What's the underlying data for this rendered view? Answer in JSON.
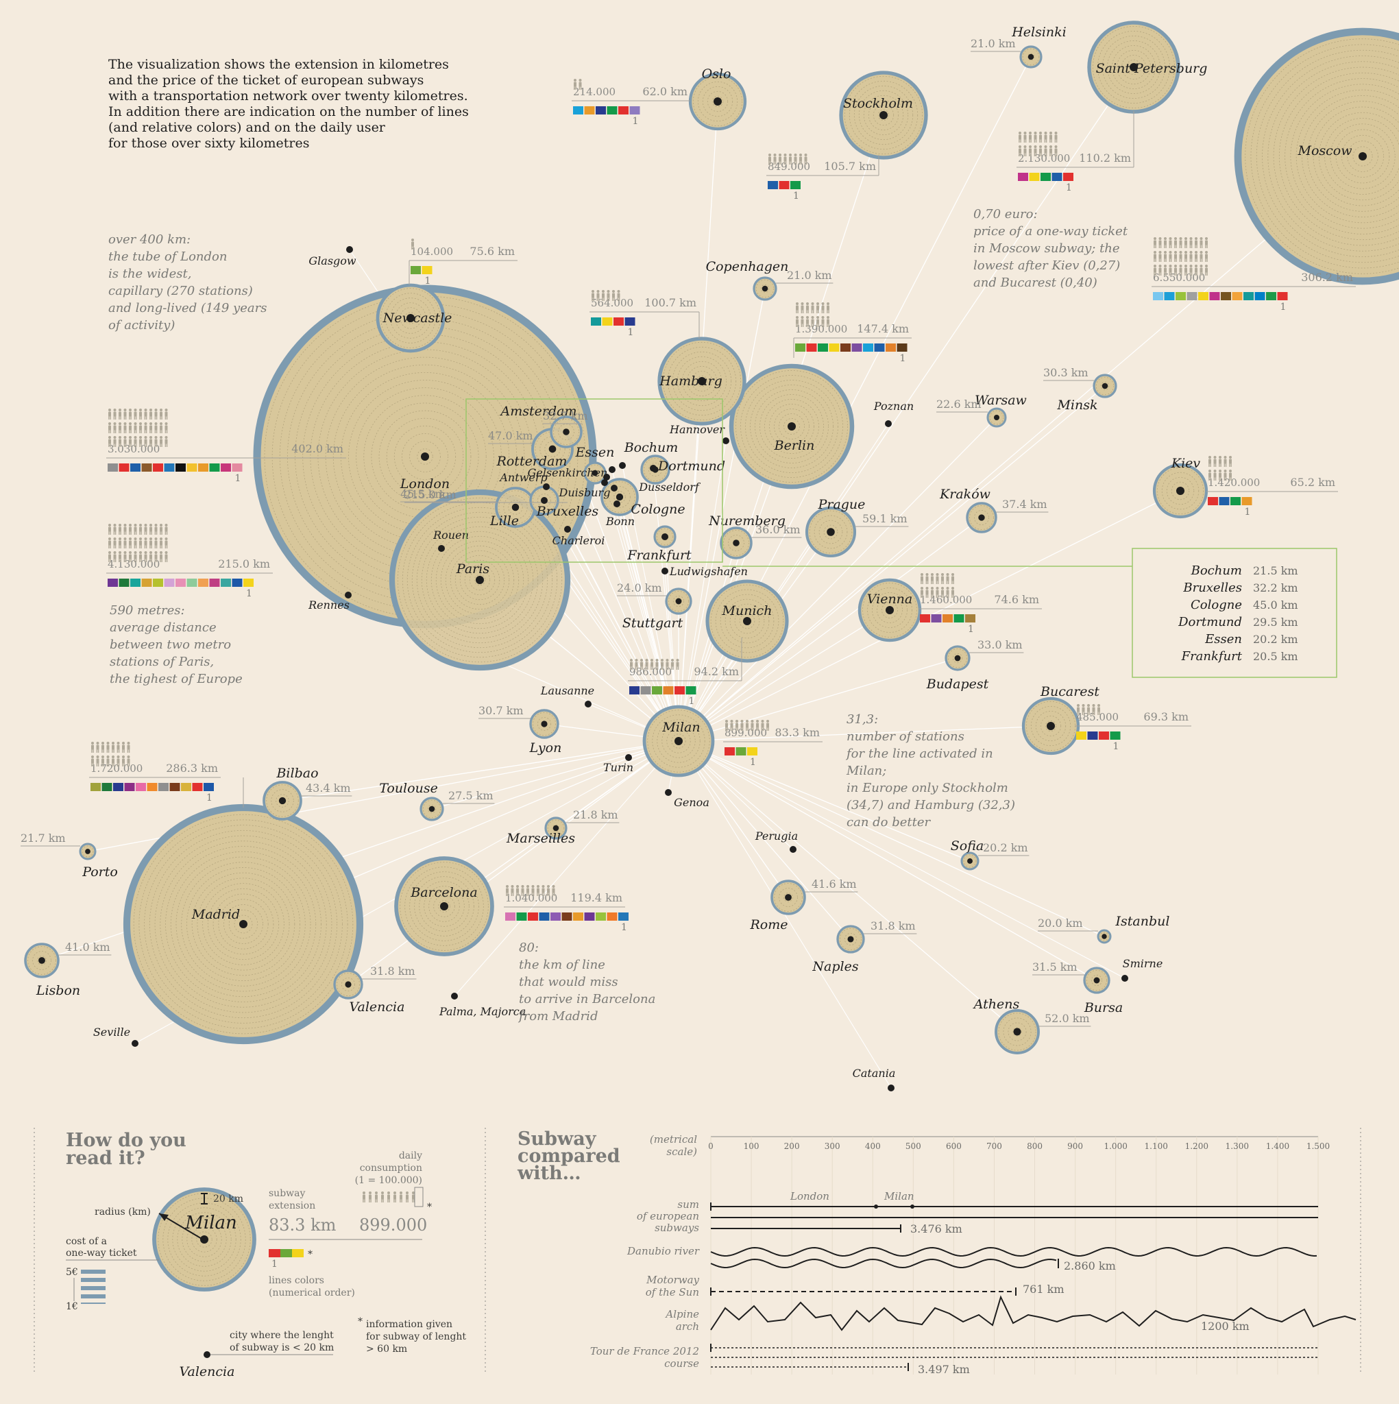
{
  "intro": {
    "lines": [
      "The visualization shows the extension in kilometres",
      "and the price of the ticket of european subways",
      "with a transportation network over twenty kilometres.",
      "In addition there are indication on the number of lines",
      "(and relative colors) and on the daily user",
      "for those over sixty kilometres"
    ]
  },
  "annotations": {
    "london": [
      "over 400 km:",
      "the tube of London",
      "is the widest,",
      "capillary (270 stations)",
      "and long-lived (149 years",
      "of activity)"
    ],
    "paris": [
      "590 metres:",
      "average distance",
      "between two metro",
      "stations of Paris,",
      "the tighest of Europe"
    ],
    "moscow": [
      "0,70 euro:",
      "price of a one-way ticket",
      "in Moscow subway; the",
      "lowest after Kiev (0,27)",
      "and Bucarest (0,40)"
    ],
    "milan": [
      "31,3:",
      "number of stations",
      "for the line activated in",
      "Milan;",
      "in Europe only Stockholm",
      "(34,7) and Hamburg (32,3)",
      "can do better"
    ],
    "barcelona": [
      "80:",
      "the km of line",
      "that would miss",
      "to arrive in Barcelona",
      "from Madrid"
    ]
  },
  "colors": {
    "bg": "#f4ebde",
    "circle_fill": "#d8c79b",
    "circle_ring": "#7d9bb0",
    "link": "#ffffff",
    "highlight_box": "#9bc76a",
    "dot": "#1e1e1e"
  },
  "cities": [
    {
      "name": "London",
      "km": "402.0 km",
      "pop": "3.030.000",
      "lines": [
        "#8f8f8f",
        "#e2312f",
        "#1f5fa8",
        "#8b5a2b",
        "#e2312f",
        "#2377b8",
        "#111111",
        "#f2c12e",
        "#e89a2a",
        "#149a4a",
        "#c7367a",
        "#e48aa0"
      ]
    },
    {
      "name": "Paris",
      "km": "215.0 km",
      "pop": "4.130.000",
      "lines": [
        "#6e3794",
        "#1f7a3b",
        "#19a59b",
        "#d6a233",
        "#b5c12e",
        "#d3a3d6",
        "#e790b5",
        "#8ecb9b",
        "#f0a052",
        "#bf3f83",
        "#3aa6a0",
        "#1d58a8",
        "#f3d31b"
      ]
    },
    {
      "name": "Madrid",
      "km": "286.3 km",
      "pop": "1.720.000",
      "lines": [
        "#a1a23b",
        "#1f7a3b",
        "#283b8f",
        "#8d2e86",
        "#e86aa6",
        "#f08a2b",
        "#8f8f8f",
        "#7a3c1c",
        "#d8b23a",
        "#e2312f",
        "#1d58a8"
      ]
    },
    {
      "name": "Moscow",
      "km": "306.2 km",
      "pop": "6.550.000",
      "lines": [
        "#79c7ef",
        "#1d9fd7",
        "#99c23c",
        "#a0a0a0",
        "#f3d31b",
        "#c0338a",
        "#76541f",
        "#f2a33a",
        "#149a9a",
        "#0080c8",
        "#1f9a4a",
        "#e2312f"
      ]
    },
    {
      "name": "Barcelona",
      "km": "119.4 km",
      "pop": "1.040.000",
      "lines": [
        "#d773b2",
        "#149a4a",
        "#e2312f",
        "#1f5fa8",
        "#8e5bb3",
        "#7a3c1c",
        "#e89a2a",
        "#6e3794",
        "#99c23c",
        "#f07a2a",
        "#2377b8"
      ]
    },
    {
      "name": "Berlin",
      "km": "147.4 km",
      "pop": "1.390.000",
      "lines": [
        "#6aa83a",
        "#e2312f",
        "#149a4a",
        "#f3d31b",
        "#7a3c1c",
        "#7d4ea0",
        "#19a1d8",
        "#1f5fa8",
        "#e2812a",
        "#5b3a1a"
      ]
    },
    {
      "name": "Milan",
      "km": "83.3 km",
      "pop": "899.000",
      "lines": [
        "#e2312f",
        "#6aa83a",
        "#f3d31b"
      ]
    },
    {
      "name": "Munich",
      "km": "94.2 km",
      "pop": "986.000",
      "lines": [
        "#283b8f",
        "#8f8f8f",
        "#6aa83a",
        "#e2812a",
        "#e2312f",
        "#149a4a"
      ]
    },
    {
      "name": "Stockholm",
      "km": "105.7 km",
      "pop": "849.000",
      "lines": [
        "#1f5fa8",
        "#e2312f",
        "#149a4a"
      ]
    },
    {
      "name": "Hamburg",
      "km": "100.7 km",
      "pop": "564.000",
      "lines": [
        "#149a9a",
        "#f3d31b",
        "#e2312f",
        "#283b8f"
      ]
    },
    {
      "name": "Saint Petersburg",
      "km": "110.2 km",
      "pop": "2.130.000",
      "lines": [
        "#c0338a",
        "#f3d31b",
        "#149a4a",
        "#1f5fa8",
        "#e2312f"
      ]
    },
    {
      "name": "Vienna",
      "km": "74.6 km",
      "pop": "1.460.000",
      "lines": [
        "#e2312f",
        "#7d4ea0",
        "#e2812a",
        "#149a4a",
        "#a5803a"
      ]
    },
    {
      "name": "Oslo",
      "km": "62.0 km",
      "pop": "214.000",
      "lines": [
        "#19a1d8",
        "#e89a2a",
        "#283b8f",
        "#149a4a",
        "#e2312f",
        "#8e7bc0"
      ]
    },
    {
      "name": "Newcastle",
      "km": "75.6 km",
      "pop": "104.000",
      "lines": [
        "#6aa83a",
        "#f3d31b"
      ]
    },
    {
      "name": "Kiev",
      "km": "65.2 km",
      "pop": "1.420.000",
      "lines": [
        "#e2312f",
        "#1f5fa8",
        "#149a4a",
        "#e89a2a"
      ]
    },
    {
      "name": "Bucarest",
      "km": "69.3 km",
      "pop": "485.000",
      "lines": [
        "#f3d31b",
        "#283b8f",
        "#e2312f",
        "#149a4a"
      ]
    },
    {
      "name": "Lisbon",
      "km": "41.0 km"
    },
    {
      "name": "Porto",
      "km": "21.7 km"
    },
    {
      "name": "Bilbao",
      "km": "43.4 km"
    },
    {
      "name": "Toulouse",
      "km": "27.5 km"
    },
    {
      "name": "Marseilles",
      "km": "21.8 km"
    },
    {
      "name": "Valencia",
      "km": "31.8 km"
    },
    {
      "name": "Lyon",
      "km": "30.7 km"
    },
    {
      "name": "Rotterdam",
      "km": "47.0 km"
    },
    {
      "name": "Amsterdam",
      "km": "32.7 km"
    },
    {
      "name": "Lille",
      "km": "45.5 km"
    },
    {
      "name": "Copenhagen",
      "km": "21.0 km"
    },
    {
      "name": "Helsinki",
      "km": "21.0 km"
    },
    {
      "name": "Stuttgart",
      "km": "24.0 km"
    },
    {
      "name": "Nuremberg",
      "km": "36.0 km"
    },
    {
      "name": "Prague",
      "km": "59.1 km"
    },
    {
      "name": "Budapest",
      "km": "33.0 km"
    },
    {
      "name": "Warsaw",
      "km": "22.6 km"
    },
    {
      "name": "Minsk",
      "km": "30.3 km"
    },
    {
      "name": "Kraków",
      "km": "37.4 km"
    },
    {
      "name": "Sofia",
      "km": "20.2 km"
    },
    {
      "name": "Rome",
      "km": "41.6 km"
    },
    {
      "name": "Naples",
      "km": "31.8 km"
    },
    {
      "name": "Istanbul",
      "km": "20.0 km"
    },
    {
      "name": "Bursa",
      "km": "31.5 km"
    },
    {
      "name": "Athens",
      "km": "52.0 km"
    }
  ],
  "small_cities": [
    "Glasgow",
    "Rennes",
    "Rouen",
    "Charleroi",
    "Ludwigshafen",
    "Lausanne",
    "Turin",
    "Genoa",
    "Hannover",
    "Poznan",
    "Perugia",
    "Seville",
    "Palma, Majorca",
    "Catania",
    "Smirne",
    "Essen",
    "Bochum",
    "Dortmund",
    "Gelsenkirchen",
    "Duisburg",
    "Dusseldorf",
    "Antwerp",
    "Bruxelles",
    "Bonn",
    "Cologne",
    "Frankfurt"
  ],
  "ruhr_box": [
    {
      "city": "Bochum",
      "km": "21.5 km"
    },
    {
      "city": "Bruxelles",
      "km": "32.2 km"
    },
    {
      "city": "Cologne",
      "km": "45.0 km"
    },
    {
      "city": "Dortmund",
      "km": "29.5 km"
    },
    {
      "city": "Essen",
      "km": "20.2 km"
    },
    {
      "city": "Frankfurt",
      "km": "20.5 km"
    }
  ],
  "legend": {
    "title_1": "How do you",
    "title_2": "read it?",
    "city": "Milan",
    "km": "83.3 km",
    "pop": "899.000",
    "radius_label": "radius (km)",
    "ring_label": "20 km",
    "cost_1": "cost of a",
    "cost_2": "one-way ticket",
    "price_high": "5€",
    "price_low": "1€",
    "ext_1": "subway",
    "ext_2": "extension",
    "daily_1": "daily",
    "daily_2": "consumption",
    "daily_3": "(1 = 100.000)",
    "lines_1": "lines colors",
    "lines_2": "(numerical order)",
    "lines_num": "1",
    "small_1": "city where the lenght",
    "small_2": "of subway is < 20 km",
    "small_city": "Valencia",
    "star": "*",
    "info_1": "information given",
    "info_2": "for subway of lenght",
    "info_3": "> 60 km"
  },
  "compare": {
    "title_1": "Subway",
    "title_2": "compared",
    "title_3": "with…",
    "scale_1": "(metrical",
    "scale_2": "scale)",
    "ticks": [
      "0",
      "100",
      "200",
      "300",
      "400",
      "500",
      "600",
      "700",
      "800",
      "900",
      "1.000",
      "1.100",
      "1.200",
      "1.300",
      "1.400",
      "1.500"
    ],
    "rows": [
      {
        "label": [
          "sum",
          "of european",
          "subways"
        ],
        "value": "3.476 km",
        "markers": [
          "London",
          "Milan"
        ]
      },
      {
        "label": [
          "Danubio river"
        ],
        "value": "2.860 km"
      },
      {
        "label": [
          "Motorway",
          "of the Sun"
        ],
        "value": "761 km"
      },
      {
        "label": [
          "Alpine",
          "arch"
        ],
        "value": "1200 km"
      },
      {
        "label": [
          "Tour de France 2012",
          "course"
        ],
        "value": "3.497 km"
      }
    ]
  }
}
